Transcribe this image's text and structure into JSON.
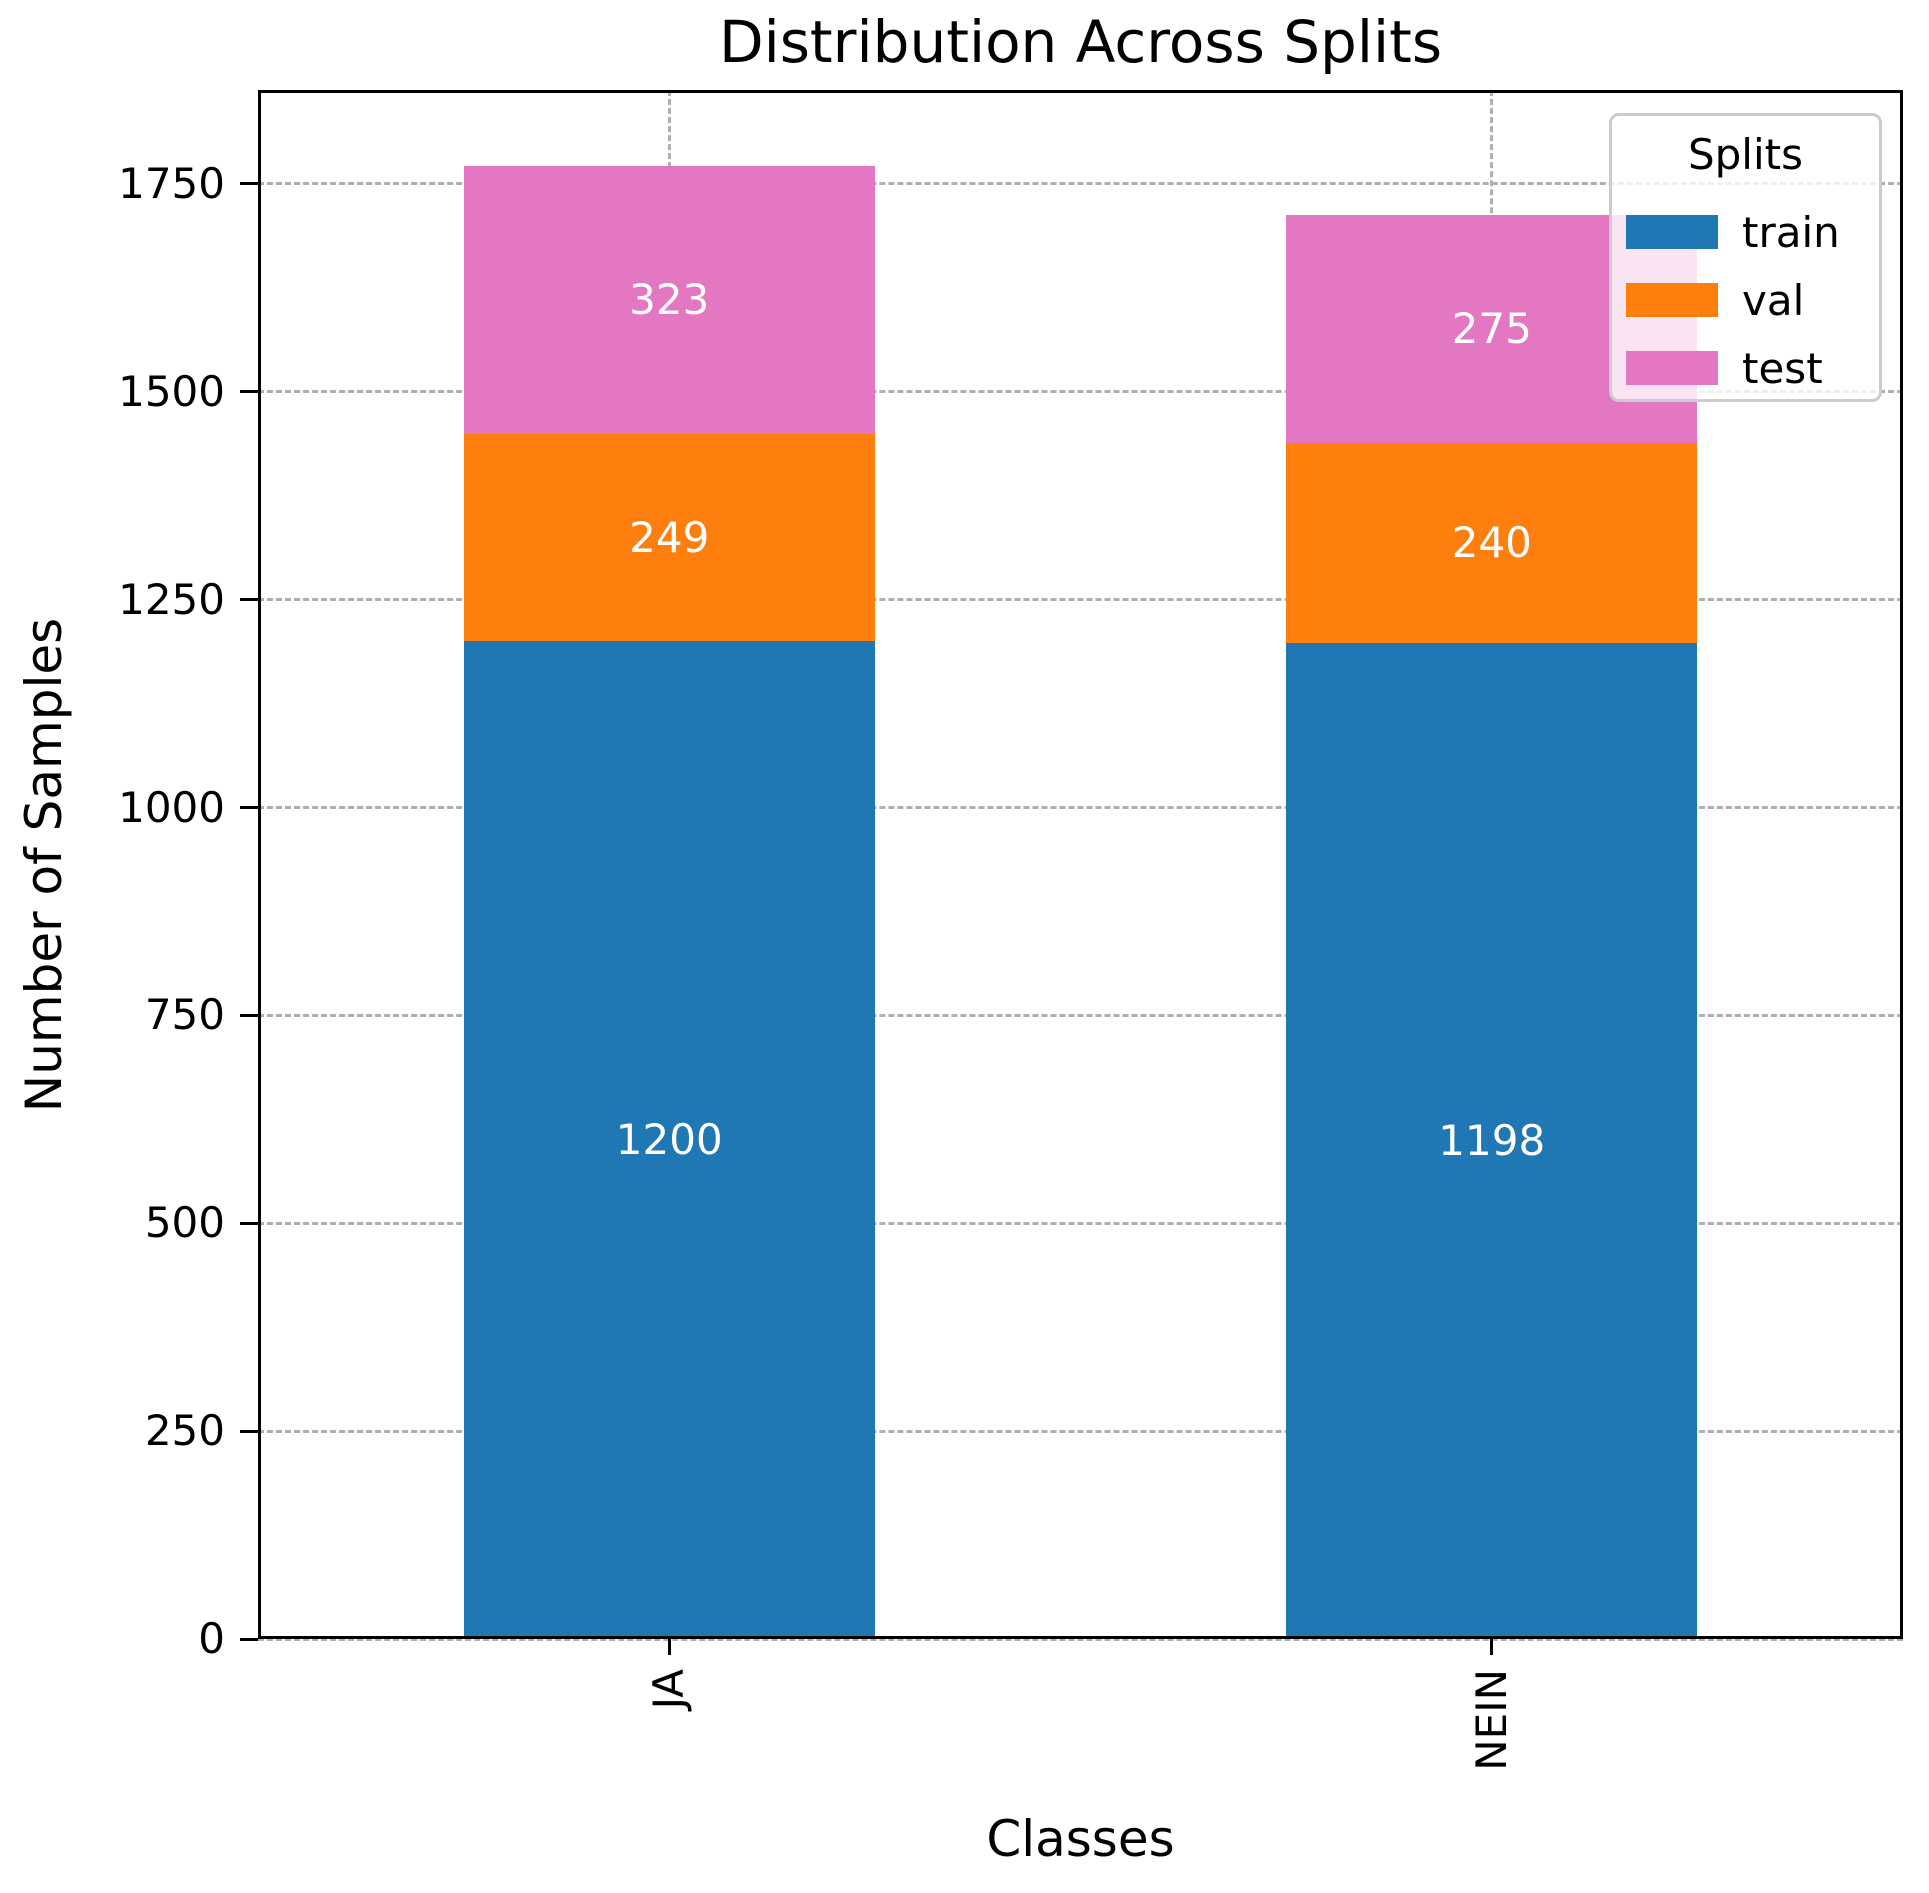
{
  "chart_data": {
    "type": "bar",
    "stacked": true,
    "title": "Distribution Across Splits",
    "xlabel": "Classes",
    "ylabel": "Number of Samples",
    "categories": [
      "JA",
      "NEIN"
    ],
    "series": [
      {
        "name": "train",
        "color": "#1f77b4",
        "values": [
          1200,
          1198
        ]
      },
      {
        "name": "val",
        "color": "#ff7f0e",
        "values": [
          249,
          240
        ]
      },
      {
        "name": "test",
        "color": "#e377c2",
        "values": [
          323,
          275
        ]
      }
    ],
    "totals": [
      1772,
      1713
    ],
    "yticks": [
      0,
      250,
      500,
      750,
      1000,
      1250,
      1500,
      1750
    ],
    "ylim": [
      0,
      1863
    ],
    "bar_width_fraction": 0.5,
    "grid": "dashed",
    "grid_color": "#b0b0b0",
    "value_label_color": "#ffffff",
    "xtick_rotation": 90,
    "legend": {
      "title": "Splits",
      "position": "upper right"
    }
  }
}
